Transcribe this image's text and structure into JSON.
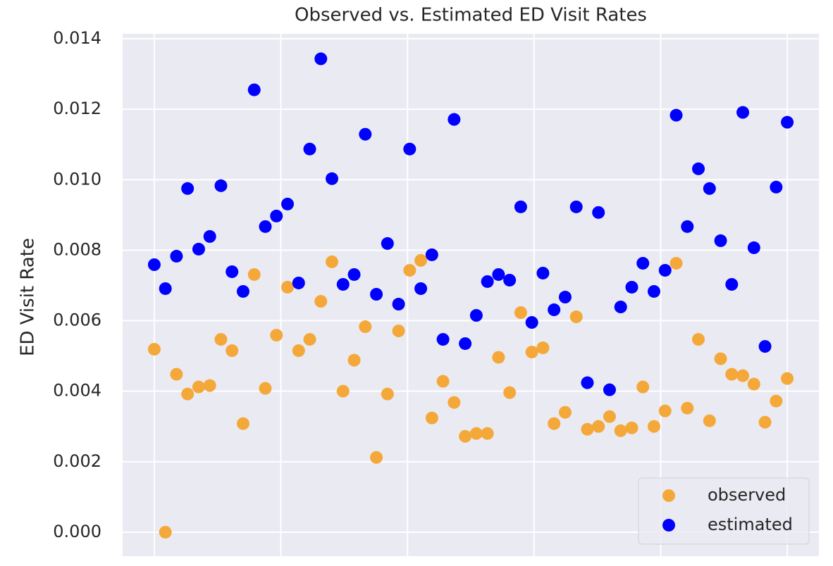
{
  "chart_data": {
    "type": "scatter",
    "title": "Observed vs. Estimated ED Visit Rates",
    "y_label": "ED Visit Rate",
    "x": [
      0,
      1,
      2,
      3,
      4,
      5,
      6,
      7,
      8,
      9,
      10,
      11,
      12,
      13,
      14,
      15,
      16,
      17,
      18,
      19,
      20,
      21,
      22,
      23,
      24,
      25,
      26,
      27,
      28,
      29,
      30,
      31,
      32,
      33,
      34,
      35,
      36,
      37,
      38,
      39,
      40,
      41,
      42,
      43,
      44,
      45,
      46,
      47,
      48,
      49,
      50,
      51,
      52,
      53,
      54,
      55,
      56,
      57
    ],
    "series": [
      {
        "name": "observed",
        "color": "#f5a83a",
        "values": [
          0.00519,
          0.0,
          0.00448,
          0.00392,
          0.00412,
          0.00416,
          0.00547,
          0.00515,
          0.00308,
          0.00731,
          0.00408,
          0.00559,
          0.00695,
          0.00515,
          0.00547,
          0.00655,
          0.00767,
          0.004,
          0.00488,
          0.00583,
          0.00212,
          0.00392,
          0.00571,
          0.00743,
          0.00771,
          0.00324,
          0.00428,
          0.00368,
          0.00272,
          0.0028,
          0.0028,
          0.00496,
          0.00396,
          0.00623,
          0.00511,
          0.00523,
          0.00308,
          0.0034,
          0.00611,
          0.00292,
          0.003,
          0.00328,
          0.00288,
          0.00296,
          0.00412,
          0.003,
          0.00344,
          0.00763,
          0.00352,
          0.00547,
          0.00316,
          0.00492,
          0.00448,
          0.00444,
          0.0042,
          0.00312,
          0.00372,
          0.00436
        ]
      },
      {
        "name": "estimated",
        "color": "#0000ff",
        "values": [
          0.00759,
          0.00691,
          0.00783,
          0.00975,
          0.00803,
          0.00839,
          0.00983,
          0.00739,
          0.00683,
          0.01255,
          0.00867,
          0.00897,
          0.00931,
          0.00707,
          0.01087,
          0.01343,
          0.01003,
          0.00703,
          0.00731,
          0.01129,
          0.00675,
          0.00819,
          0.00647,
          0.01087,
          0.00691,
          0.00787,
          0.00547,
          0.01171,
          0.00535,
          0.00615,
          0.00711,
          0.00731,
          0.00715,
          0.00923,
          0.00595,
          0.00735,
          0.00631,
          0.00667,
          0.00923,
          0.00424,
          0.00907,
          0.00404,
          0.00639,
          0.00695,
          0.00763,
          0.00683,
          0.00743,
          0.01183,
          0.00867,
          0.01031,
          0.00975,
          0.00827,
          0.00703,
          0.01191,
          0.00807,
          0.00527,
          0.00979,
          0.01163
        ]
      }
    ],
    "xlim": [
      -2.85,
      59.85
    ],
    "xticks": [
      0,
      11.4,
      22.8,
      34.2,
      45.6,
      57
    ],
    "ylim": [
      -0.00068,
      0.01414
    ],
    "yticks": [
      {
        "value": 0,
        "label": "0.000"
      },
      {
        "value": 0.002,
        "label": "0.002"
      },
      {
        "value": 0.004,
        "label": "0.004"
      },
      {
        "value": 0.006,
        "label": "0.006"
      },
      {
        "value": 0.008,
        "label": "0.008"
      },
      {
        "value": 0.01,
        "label": "0.010"
      },
      {
        "value": 0.012,
        "label": "0.012"
      },
      {
        "value": 0.014,
        "label": "0.014"
      }
    ],
    "grid": true,
    "legend": "lower right"
  }
}
